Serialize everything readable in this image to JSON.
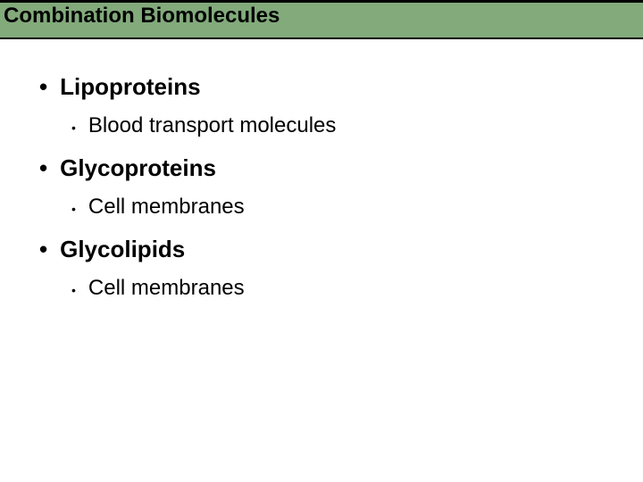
{
  "header": {
    "title": "Combination Biomolecules",
    "title_fontsize": 24,
    "title_color": "#000000",
    "bar_background": "#82aa7b",
    "bar_border_color": "#000000"
  },
  "content": {
    "fontsize_l1": 26,
    "fontsize_l2": 24,
    "text_color": "#000000",
    "bullet_char": "•",
    "items": [
      {
        "label": "Lipoproteins",
        "subitems": [
          {
            "label": "Blood transport molecules"
          }
        ]
      },
      {
        "label": "Glycoproteins",
        "subitems": [
          {
            "label": "Cell membranes"
          }
        ]
      },
      {
        "label": "Glycolipids",
        "subitems": [
          {
            "label": "Cell membranes"
          }
        ]
      }
    ]
  }
}
